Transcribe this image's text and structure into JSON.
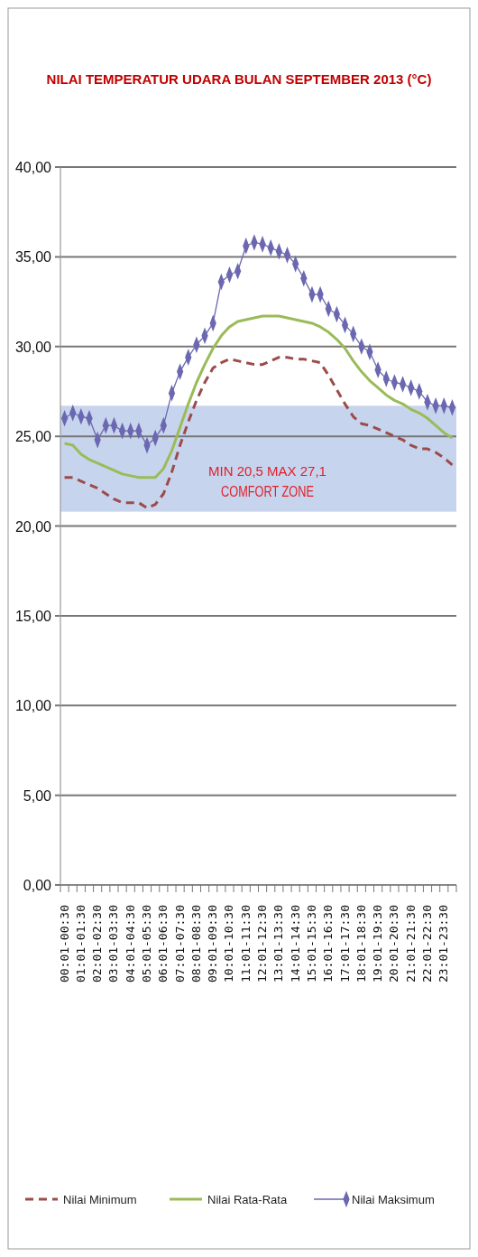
{
  "chart_data": {
    "type": "line",
    "title": "NILAI TEMPERATUR UDARA BULAN SEPTEMBER 2013  (°C)",
    "categories": [
      "00:01-00:30",
      null,
      "01:01-01:30",
      null,
      "02:01-02:30",
      null,
      "03:01-03:30",
      null,
      "04:01-04:30",
      null,
      "05:01-05:30",
      null,
      "06:01-06:30",
      null,
      "07:01-07:30",
      null,
      "08:01-08:30",
      null,
      "09:01-09:30",
      null,
      "10:01-10:30",
      null,
      "11:01-11:30",
      null,
      "12:01-12:30",
      null,
      "13:01-13:30",
      null,
      "14:01-14:30",
      null,
      "15:01-15:30",
      null,
      "16:01-16:30",
      null,
      "17:01-17:30",
      null,
      "18:01-18:30",
      null,
      "19:01-19:30",
      null,
      "20:01-20:30",
      null,
      "21:01-21:30",
      null,
      "22:01-22:30",
      null,
      "23:01-23:30",
      null
    ],
    "series": [
      {
        "name": "Nilai Minimum",
        "color": "#9c4b4b",
        "line_style": "dashed",
        "marker": "none",
        "values": [
          22.7,
          22.7,
          22.5,
          22.3,
          22.1,
          21.8,
          21.5,
          21.3,
          21.3,
          21.3,
          21.0,
          21.2,
          21.8,
          23.0,
          24.5,
          25.8,
          27.0,
          28.0,
          28.8,
          29.1,
          29.3,
          29.2,
          29.1,
          29.0,
          29.0,
          29.2,
          29.4,
          29.4,
          29.3,
          29.3,
          29.2,
          29.1,
          28.4,
          27.6,
          26.8,
          26.1,
          25.7,
          25.6,
          25.4,
          25.2,
          25.0,
          24.8,
          24.5,
          24.3,
          24.3,
          24.1,
          23.8,
          23.4
        ]
      },
      {
        "name": "Nilai Rata-Rata",
        "color": "#9bbb59",
        "line_style": "solid",
        "marker": "none",
        "values": [
          24.6,
          24.5,
          24.0,
          23.7,
          23.5,
          23.3,
          23.1,
          22.9,
          22.8,
          22.7,
          22.7,
          22.7,
          23.2,
          24.2,
          25.5,
          26.8,
          28.0,
          29.0,
          29.9,
          30.6,
          31.1,
          31.4,
          31.5,
          31.6,
          31.7,
          31.7,
          31.7,
          31.6,
          31.5,
          31.4,
          31.3,
          31.1,
          30.8,
          30.4,
          29.9,
          29.2,
          28.6,
          28.1,
          27.7,
          27.3,
          27.0,
          26.8,
          26.5,
          26.3,
          26.0,
          25.6,
          25.2,
          24.9
        ]
      },
      {
        "name": "Nilai Maksimum",
        "color": "#6b67b0",
        "line_style": "solid",
        "marker": "diamond",
        "values": [
          26.0,
          26.3,
          26.1,
          26.0,
          24.8,
          25.6,
          25.6,
          25.3,
          25.3,
          25.3,
          24.5,
          24.9,
          25.6,
          27.4,
          28.6,
          29.4,
          30.1,
          30.6,
          31.3,
          33.6,
          34.0,
          34.2,
          35.6,
          35.8,
          35.7,
          35.5,
          35.3,
          35.1,
          34.6,
          33.8,
          32.9,
          32.9,
          32.1,
          31.8,
          31.2,
          30.7,
          30.0,
          29.7,
          28.7,
          28.2,
          28.0,
          27.9,
          27.7,
          27.5,
          26.9,
          26.7,
          26.7,
          26.6
        ]
      }
    ],
    "ylim": [
      0,
      40
    ],
    "yticks": [
      {
        "value": 0,
        "label": "0,00"
      },
      {
        "value": 5,
        "label": "5,00"
      },
      {
        "value": 10,
        "label": "10,00"
      },
      {
        "value": 15,
        "label": "15,00"
      },
      {
        "value": 20,
        "label": "20,00"
      },
      {
        "value": 25,
        "label": "25,00"
      },
      {
        "value": 30,
        "label": "30,00"
      },
      {
        "value": 35,
        "label": "35,00"
      },
      {
        "value": 40,
        "label": "40,00"
      }
    ],
    "grid": "y",
    "legend": "bottom",
    "bands": [
      {
        "axis": "y",
        "from": 20.8,
        "to": 26.7,
        "label": "COMFORT ZONE",
        "color": "#b4c6e7"
      }
    ],
    "annotations": [
      "MIN 20,5 MAX 27,1"
    ]
  }
}
